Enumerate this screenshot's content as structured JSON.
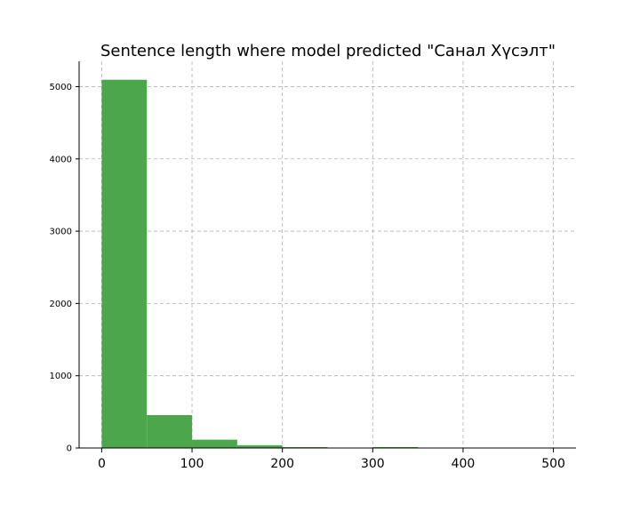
{
  "chart_data": {
    "type": "bar",
    "title": "Sentence length where model predicted \"Санал Хүсэлт\"",
    "xlabel": "",
    "ylabel": "",
    "bins": [
      {
        "x0": 0,
        "x1": 50,
        "count": 5095
      },
      {
        "x0": 50,
        "x1": 100,
        "count": 455
      },
      {
        "x0": 100,
        "x1": 150,
        "count": 115
      },
      {
        "x0": 150,
        "x1": 200,
        "count": 38
      },
      {
        "x0": 200,
        "x1": 250,
        "count": 12
      },
      {
        "x0": 250,
        "x1": 300,
        "count": 3
      },
      {
        "x0": 300,
        "x1": 350,
        "count": 13
      },
      {
        "x0": 350,
        "x1": 400,
        "count": 2
      },
      {
        "x0": 400,
        "x1": 450,
        "count": 1
      },
      {
        "x0": 450,
        "x1": 500,
        "count": 2
      }
    ],
    "xlim": [
      -25,
      525
    ],
    "ylim": [
      0,
      5350
    ],
    "xticks": [
      0,
      100,
      200,
      300,
      400,
      500
    ],
    "yticks": [
      0,
      1000,
      2000,
      3000,
      4000,
      5000
    ],
    "bar_color": "#4ca64c",
    "grid": true
  }
}
